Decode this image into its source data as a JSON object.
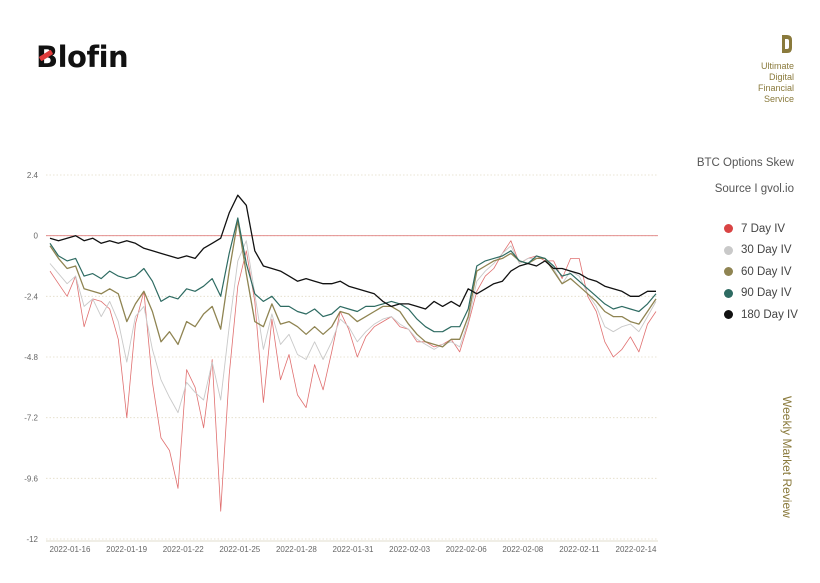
{
  "brand": {
    "logo_text": "Blofin",
    "tagline": [
      "Ultimate",
      "Digital",
      "Financial",
      "Service"
    ],
    "side_title": "Weekly Market Review",
    "accent": "#8a7a3c"
  },
  "chart_data": {
    "type": "line",
    "title": "BTC Options Skew",
    "source": "Source I gvol.io",
    "x_ticks": [
      "2022-01-16",
      "2022-01-19",
      "2022-01-22",
      "2022-01-25",
      "2022-01-28",
      "2022-01-31",
      "2022-02-03",
      "2022-02-06",
      "2022-02-08",
      "2022-02-11",
      "2022-02-14"
    ],
    "y_ticks": [
      "2.4",
      "0",
      "-2.4",
      "-4.8",
      "-7.2",
      "-9.6",
      "-12"
    ],
    "ylim": [
      -12,
      2.4
    ],
    "zero_line": 0,
    "grid": "horizontal dotted",
    "legend_position": "right",
    "series": [
      {
        "name": "7 Day IV",
        "color": "#e07070",
        "values": [
          -1.4,
          -1.9,
          -2.4,
          -1.6,
          -3.6,
          -2.5,
          -2.6,
          -2.9,
          -4.1,
          -7.2,
          -3.5,
          -2.2,
          -5.8,
          -8.0,
          -8.5,
          -10.0,
          -5.3,
          -6.0,
          -7.6,
          -4.9,
          -10.9,
          -5.5,
          -2.0,
          -0.6,
          -2.6,
          -6.6,
          -3.3,
          -5.7,
          -4.7,
          -6.3,
          -6.8,
          -5.1,
          -6.1,
          -4.6,
          -3.0,
          -3.7,
          -4.8,
          -4.0,
          -3.6,
          -3.4,
          -3.2,
          -3.6,
          -3.7,
          -4.2,
          -4.2,
          -4.4,
          -4.3,
          -4.1,
          -4.6,
          -3.5,
          -2.2,
          -1.6,
          -1.3,
          -0.7,
          -0.2,
          -1.1,
          -0.9,
          -0.8,
          -1.0,
          -1.0,
          -1.7,
          -0.9,
          -0.9,
          -2.4,
          -3.0,
          -4.2,
          -4.8,
          -4.5,
          -4.0,
          -4.6,
          -3.5,
          -3.0
        ]
      },
      {
        "name": "30 Day IV",
        "color": "#c9c9c9",
        "values": [
          -1.1,
          -1.5,
          -1.9,
          -1.6,
          -2.8,
          -2.5,
          -3.2,
          -2.6,
          -3.4,
          -5.0,
          -3.2,
          -2.8,
          -4.5,
          -5.7,
          -6.4,
          -7.0,
          -5.8,
          -6.2,
          -6.5,
          -5.0,
          -6.5,
          -3.6,
          -1.0,
          -0.2,
          -2.3,
          -4.5,
          -3.1,
          -4.3,
          -3.9,
          -4.7,
          -4.9,
          -4.2,
          -4.9,
          -4.2,
          -3.3,
          -3.6,
          -4.2,
          -3.8,
          -3.5,
          -3.3,
          -3.2,
          -3.5,
          -3.7,
          -4.1,
          -4.3,
          -4.5,
          -4.3,
          -4.2,
          -4.4,
          -3.4,
          -1.8,
          -1.4,
          -1.1,
          -0.7,
          -0.4,
          -1.1,
          -0.9,
          -0.9,
          -0.9,
          -1.3,
          -1.9,
          -1.4,
          -1.6,
          -2.3,
          -2.8,
          -3.6,
          -3.8,
          -3.6,
          -3.5,
          -3.8,
          -3.2,
          -2.6
        ]
      },
      {
        "name": "60 Day IV",
        "color": "#8f8452",
        "values": [
          -0.4,
          -0.9,
          -1.3,
          -1.2,
          -2.1,
          -2.2,
          -2.3,
          -2.1,
          -2.3,
          -3.4,
          -2.7,
          -2.2,
          -3.0,
          -4.2,
          -3.8,
          -4.3,
          -3.4,
          -3.6,
          -3.1,
          -2.8,
          -3.7,
          -1.4,
          0.6,
          -1.5,
          -3.4,
          -3.6,
          -2.7,
          -3.5,
          -3.4,
          -3.6,
          -3.9,
          -3.6,
          -3.9,
          -3.6,
          -3.0,
          -3.1,
          -3.4,
          -3.2,
          -3.0,
          -2.8,
          -2.8,
          -3.0,
          -3.5,
          -3.9,
          -4.2,
          -4.3,
          -4.4,
          -4.1,
          -4.1,
          -3.2,
          -1.4,
          -1.2,
          -1.0,
          -0.9,
          -0.7,
          -1.0,
          -1.1,
          -0.9,
          -0.9,
          -1.4,
          -1.9,
          -1.7,
          -2.0,
          -2.3,
          -2.6,
          -3.0,
          -3.2,
          -3.2,
          -3.4,
          -3.5,
          -3.0,
          -2.5
        ]
      },
      {
        "name": "90 Day IV",
        "color": "#2e6b62",
        "values": [
          -0.3,
          -0.8,
          -1.0,
          -0.9,
          -1.6,
          -1.5,
          -1.7,
          -1.4,
          -1.6,
          -1.7,
          -1.6,
          -1.3,
          -1.8,
          -2.6,
          -2.4,
          -2.5,
          -2.1,
          -2.2,
          -2.0,
          -1.7,
          -2.4,
          -0.7,
          0.7,
          -1.1,
          -2.3,
          -2.6,
          -2.4,
          -2.8,
          -2.8,
          -3.0,
          -3.1,
          -2.9,
          -3.2,
          -3.1,
          -2.8,
          -2.9,
          -3.0,
          -2.8,
          -2.8,
          -2.7,
          -2.6,
          -2.7,
          -2.9,
          -3.3,
          -3.6,
          -3.8,
          -3.8,
          -3.6,
          -3.6,
          -2.9,
          -1.2,
          -1.0,
          -0.9,
          -0.8,
          -0.6,
          -1.0,
          -1.1,
          -0.8,
          -0.9,
          -1.2,
          -1.6,
          -1.5,
          -1.8,
          -2.1,
          -2.4,
          -2.7,
          -2.9,
          -2.8,
          -2.9,
          -3.0,
          -2.7,
          -2.3
        ]
      },
      {
        "name": "180 Day IV",
        "color": "#111111",
        "values": [
          -0.1,
          -0.2,
          -0.1,
          0.0,
          -0.2,
          -0.1,
          -0.3,
          -0.2,
          -0.3,
          -0.2,
          -0.3,
          -0.5,
          -0.6,
          -0.7,
          -0.8,
          -0.9,
          -0.8,
          -0.9,
          -0.5,
          -0.3,
          -0.1,
          0.9,
          1.6,
          1.2,
          -0.6,
          -1.2,
          -1.3,
          -1.4,
          -1.6,
          -1.8,
          -1.7,
          -1.8,
          -1.9,
          -1.9,
          -1.8,
          -2.0,
          -2.1,
          -2.2,
          -2.3,
          -2.6,
          -2.8,
          -2.7,
          -2.7,
          -2.8,
          -2.9,
          -2.6,
          -2.8,
          -2.6,
          -2.8,
          -2.1,
          -2.3,
          -2.1,
          -1.9,
          -1.8,
          -1.4,
          -1.2,
          -1.1,
          -1.2,
          -1.0,
          -1.3,
          -1.3,
          -1.4,
          -1.5,
          -1.7,
          -1.8,
          -2.0,
          -2.1,
          -2.2,
          -2.4,
          -2.4,
          -2.2,
          -2.2
        ]
      }
    ]
  }
}
